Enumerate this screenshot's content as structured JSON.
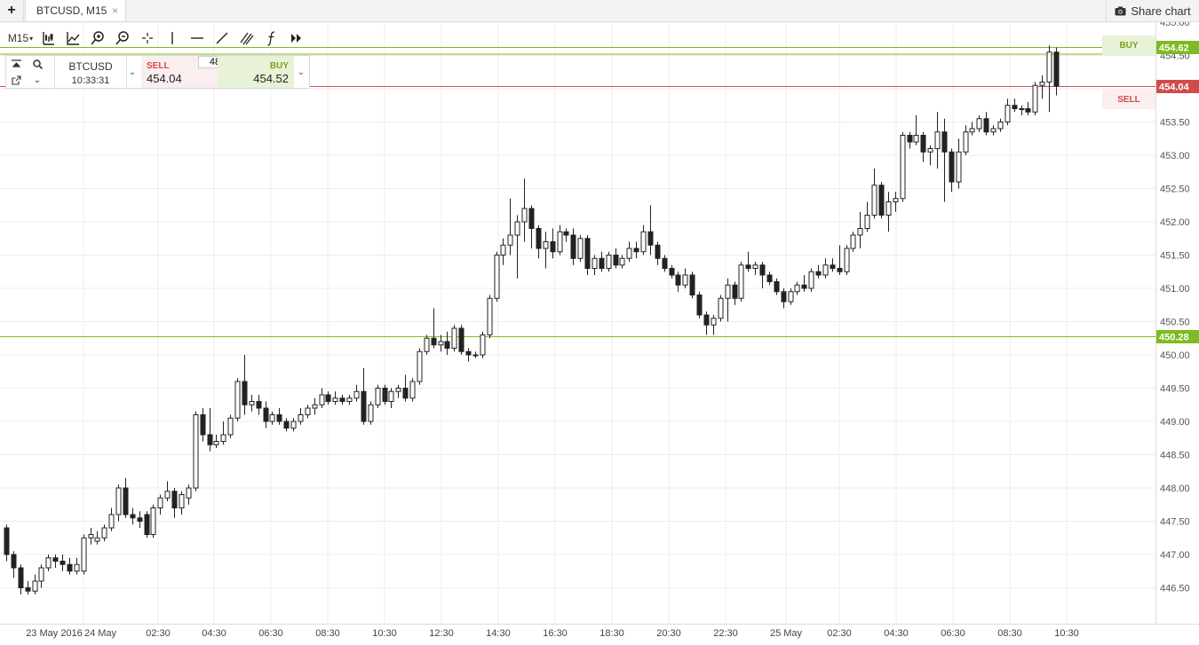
{
  "tabs": {
    "add_label": "+",
    "active_label": "BTCUSD, M15",
    "close_label": "×"
  },
  "share_label": "Share chart",
  "toolbar": {
    "timeframe": "M15"
  },
  "trade": {
    "symbol": "BTCUSD",
    "time": "10:33:31",
    "sell_label": "SELL",
    "sell_price": "454.04",
    "buy_label": "BUY",
    "buy_price": "454.52",
    "quantity": "48"
  },
  "markers": {
    "buy_label": "BUY",
    "sell_label": "SELL"
  },
  "colors": {
    "green": "#7dbb22",
    "red": "#d24b4b",
    "grid": "#ededed",
    "buy_bg": "#e7f2d6",
    "sell_bg": "#fbeeee"
  },
  "chart_data": {
    "type": "candlestick",
    "symbol": "BTCUSD",
    "timeframe": "M15",
    "y_axis": {
      "ticks": [
        "446.50",
        "447.00",
        "447.50",
        "448.00",
        "448.50",
        "449.00",
        "449.50",
        "450.00",
        "450.50",
        "451.00",
        "451.50",
        "452.00",
        "452.50",
        "453.00",
        "453.50",
        "454.00",
        "454.50",
        "455.00"
      ],
      "ylim": [
        446.0,
        455.35
      ]
    },
    "x_axis": {
      "ticks": [
        "23 May 2016",
        "24 May",
        "02:30",
        "04:30",
        "06:30",
        "08:30",
        "10:30",
        "12:30",
        "14:30",
        "16:30",
        "18:30",
        "20:30",
        "22:30",
        "25 May",
        "02:30",
        "04:30",
        "06:30",
        "08:30",
        "10:30"
      ]
    },
    "price_lines": [
      {
        "label": "454.62",
        "value": 454.62,
        "color": "green"
      },
      {
        "label": "454.04",
        "value": 454.04,
        "color": "red"
      },
      {
        "label": "450.28",
        "value": 450.28,
        "color": "green"
      }
    ],
    "extra_lines": [
      {
        "value": 454.52,
        "color": "green"
      }
    ],
    "candles": [
      {
        "o": 447.4,
        "h": 447.45,
        "l": 446.9,
        "c": 447.0
      },
      {
        "o": 447.0,
        "h": 447.05,
        "l": 446.65,
        "c": 446.8
      },
      {
        "o": 446.8,
        "h": 446.85,
        "l": 446.4,
        "c": 446.5
      },
      {
        "o": 446.5,
        "h": 446.6,
        "l": 446.4,
        "c": 446.45
      },
      {
        "o": 446.45,
        "h": 446.7,
        "l": 446.4,
        "c": 446.6
      },
      {
        "o": 446.6,
        "h": 446.85,
        "l": 446.5,
        "c": 446.8
      },
      {
        "o": 446.8,
        "h": 447.0,
        "l": 446.75,
        "c": 446.95
      },
      {
        "o": 446.95,
        "h": 447.0,
        "l": 446.8,
        "c": 446.9
      },
      {
        "o": 446.9,
        "h": 447.0,
        "l": 446.75,
        "c": 446.85
      },
      {
        "o": 446.85,
        "h": 446.95,
        "l": 446.7,
        "c": 446.75
      },
      {
        "o": 446.75,
        "h": 446.95,
        "l": 446.7,
        "c": 446.85
      },
      {
        "o": 446.75,
        "h": 447.3,
        "l": 446.7,
        "c": 447.25
      },
      {
        "o": 447.25,
        "h": 447.4,
        "l": 447.15,
        "c": 447.3
      },
      {
        "o": 447.2,
        "h": 447.35,
        "l": 447.15,
        "c": 447.25
      },
      {
        "o": 447.25,
        "h": 447.45,
        "l": 447.2,
        "c": 447.4
      },
      {
        "o": 447.4,
        "h": 447.7,
        "l": 447.35,
        "c": 447.6
      },
      {
        "o": 447.6,
        "h": 448.05,
        "l": 447.5,
        "c": 448.0
      },
      {
        "o": 448.0,
        "h": 448.15,
        "l": 447.55,
        "c": 447.6
      },
      {
        "o": 447.6,
        "h": 447.7,
        "l": 447.45,
        "c": 447.55
      },
      {
        "o": 447.55,
        "h": 447.65,
        "l": 447.4,
        "c": 447.5
      },
      {
        "o": 447.6,
        "h": 447.65,
        "l": 447.25,
        "c": 447.3
      },
      {
        "o": 447.3,
        "h": 447.75,
        "l": 447.25,
        "c": 447.7
      },
      {
        "o": 447.7,
        "h": 447.9,
        "l": 447.6,
        "c": 447.85
      },
      {
        "o": 447.85,
        "h": 448.1,
        "l": 447.8,
        "c": 447.95
      },
      {
        "o": 447.95,
        "h": 448.0,
        "l": 447.55,
        "c": 447.7
      },
      {
        "o": 447.7,
        "h": 447.95,
        "l": 447.6,
        "c": 447.9
      },
      {
        "o": 447.85,
        "h": 448.05,
        "l": 447.75,
        "c": 448.0
      },
      {
        "o": 448.0,
        "h": 449.15,
        "l": 447.95,
        "c": 449.1
      },
      {
        "o": 449.1,
        "h": 449.2,
        "l": 448.7,
        "c": 448.8
      },
      {
        "o": 448.8,
        "h": 449.2,
        "l": 448.55,
        "c": 448.65
      },
      {
        "o": 448.65,
        "h": 448.8,
        "l": 448.6,
        "c": 448.7
      },
      {
        "o": 448.7,
        "h": 449.0,
        "l": 448.65,
        "c": 448.8
      },
      {
        "o": 448.8,
        "h": 449.1,
        "l": 448.75,
        "c": 449.05
      },
      {
        "o": 449.05,
        "h": 449.65,
        "l": 449.0,
        "c": 449.6
      },
      {
        "o": 449.6,
        "h": 450.0,
        "l": 449.1,
        "c": 449.25
      },
      {
        "o": 449.25,
        "h": 449.4,
        "l": 449.15,
        "c": 449.3
      },
      {
        "o": 449.3,
        "h": 449.4,
        "l": 449.1,
        "c": 449.2
      },
      {
        "o": 449.2,
        "h": 449.3,
        "l": 448.9,
        "c": 449.0
      },
      {
        "o": 449.0,
        "h": 449.15,
        "l": 448.95,
        "c": 449.1
      },
      {
        "o": 449.1,
        "h": 449.2,
        "l": 448.95,
        "c": 449.0
      },
      {
        "o": 449.0,
        "h": 449.05,
        "l": 448.85,
        "c": 448.9
      },
      {
        "o": 448.9,
        "h": 449.05,
        "l": 448.85,
        "c": 449.0
      },
      {
        "o": 449.0,
        "h": 449.2,
        "l": 448.95,
        "c": 449.1
      },
      {
        "o": 449.1,
        "h": 449.25,
        "l": 449.05,
        "c": 449.2
      },
      {
        "o": 449.2,
        "h": 449.35,
        "l": 449.1,
        "c": 449.25
      },
      {
        "o": 449.25,
        "h": 449.5,
        "l": 449.2,
        "c": 449.4
      },
      {
        "o": 449.4,
        "h": 449.45,
        "l": 449.25,
        "c": 449.3
      },
      {
        "o": 449.3,
        "h": 449.45,
        "l": 449.25,
        "c": 449.35
      },
      {
        "o": 449.35,
        "h": 449.4,
        "l": 449.25,
        "c": 449.3
      },
      {
        "o": 449.3,
        "h": 449.4,
        "l": 449.25,
        "c": 449.35
      },
      {
        "o": 449.35,
        "h": 449.55,
        "l": 449.3,
        "c": 449.45
      },
      {
        "o": 449.45,
        "h": 449.8,
        "l": 448.95,
        "c": 449.0
      },
      {
        "o": 449.0,
        "h": 449.3,
        "l": 448.95,
        "c": 449.25
      },
      {
        "o": 449.25,
        "h": 449.55,
        "l": 449.2,
        "c": 449.5
      },
      {
        "o": 449.5,
        "h": 449.55,
        "l": 449.25,
        "c": 449.3
      },
      {
        "o": 449.3,
        "h": 449.5,
        "l": 449.2,
        "c": 449.45
      },
      {
        "o": 449.45,
        "h": 449.55,
        "l": 449.35,
        "c": 449.5
      },
      {
        "o": 449.5,
        "h": 449.7,
        "l": 449.3,
        "c": 449.35
      },
      {
        "o": 449.35,
        "h": 449.65,
        "l": 449.3,
        "c": 449.6
      },
      {
        "o": 449.6,
        "h": 450.1,
        "l": 449.55,
        "c": 450.05
      },
      {
        "o": 450.05,
        "h": 450.3,
        "l": 450.0,
        "c": 450.25
      },
      {
        "o": 450.25,
        "h": 450.7,
        "l": 450.1,
        "c": 450.15
      },
      {
        "o": 450.15,
        "h": 450.3,
        "l": 450.05,
        "c": 450.2
      },
      {
        "o": 450.2,
        "h": 450.35,
        "l": 450.0,
        "c": 450.1
      },
      {
        "o": 450.1,
        "h": 450.45,
        "l": 450.05,
        "c": 450.4
      },
      {
        "o": 450.4,
        "h": 450.45,
        "l": 450.0,
        "c": 450.05
      },
      {
        "o": 450.05,
        "h": 450.1,
        "l": 449.9,
        "c": 450.0
      },
      {
        "o": 450.0,
        "h": 450.05,
        "l": 449.95,
        "c": 450.0
      },
      {
        "o": 450.0,
        "h": 450.35,
        "l": 449.95,
        "c": 450.3
      },
      {
        "o": 450.3,
        "h": 450.9,
        "l": 450.25,
        "c": 450.85
      },
      {
        "o": 450.85,
        "h": 451.55,
        "l": 450.8,
        "c": 451.5
      },
      {
        "o": 451.5,
        "h": 451.75,
        "l": 451.35,
        "c": 451.65
      },
      {
        "o": 451.65,
        "h": 452.35,
        "l": 451.5,
        "c": 451.8
      },
      {
        "o": 451.8,
        "h": 452.1,
        "l": 451.15,
        "c": 452.0
      },
      {
        "o": 452.0,
        "h": 452.65,
        "l": 451.7,
        "c": 452.2
      },
      {
        "o": 452.2,
        "h": 452.25,
        "l": 451.6,
        "c": 451.9
      },
      {
        "o": 451.9,
        "h": 451.95,
        "l": 451.45,
        "c": 451.6
      },
      {
        "o": 451.6,
        "h": 451.85,
        "l": 451.3,
        "c": 451.7
      },
      {
        "o": 451.7,
        "h": 451.9,
        "l": 451.45,
        "c": 451.55
      },
      {
        "o": 451.55,
        "h": 451.95,
        "l": 451.5,
        "c": 451.85
      },
      {
        "o": 451.85,
        "h": 451.9,
        "l": 451.7,
        "c": 451.8
      },
      {
        "o": 451.8,
        "h": 451.9,
        "l": 451.35,
        "c": 451.45
      },
      {
        "o": 451.45,
        "h": 451.8,
        "l": 451.4,
        "c": 451.75
      },
      {
        "o": 451.75,
        "h": 451.8,
        "l": 451.2,
        "c": 451.3
      },
      {
        "o": 451.3,
        "h": 451.5,
        "l": 451.2,
        "c": 451.45
      },
      {
        "o": 451.45,
        "h": 451.55,
        "l": 451.25,
        "c": 451.3
      },
      {
        "o": 451.3,
        "h": 451.55,
        "l": 451.25,
        "c": 451.5
      },
      {
        "o": 451.5,
        "h": 451.6,
        "l": 451.3,
        "c": 451.35
      },
      {
        "o": 451.35,
        "h": 451.5,
        "l": 451.3,
        "c": 451.45
      },
      {
        "o": 451.45,
        "h": 451.7,
        "l": 451.4,
        "c": 451.6
      },
      {
        "o": 451.6,
        "h": 451.7,
        "l": 451.45,
        "c": 451.55
      },
      {
        "o": 451.55,
        "h": 451.95,
        "l": 451.5,
        "c": 451.85
      },
      {
        "o": 451.85,
        "h": 452.25,
        "l": 451.5,
        "c": 451.65
      },
      {
        "o": 451.65,
        "h": 451.7,
        "l": 451.35,
        "c": 451.45
      },
      {
        "o": 451.45,
        "h": 451.5,
        "l": 451.25,
        "c": 451.3
      },
      {
        "o": 451.3,
        "h": 451.35,
        "l": 451.15,
        "c": 451.2
      },
      {
        "o": 451.2,
        "h": 451.25,
        "l": 450.95,
        "c": 451.05
      },
      {
        "o": 451.05,
        "h": 451.3,
        "l": 451.0,
        "c": 451.2
      },
      {
        "o": 451.2,
        "h": 451.25,
        "l": 450.85,
        "c": 450.9
      },
      {
        "o": 450.9,
        "h": 450.95,
        "l": 450.55,
        "c": 450.6
      },
      {
        "o": 450.6,
        "h": 450.65,
        "l": 450.3,
        "c": 450.45
      },
      {
        "o": 450.45,
        "h": 450.6,
        "l": 450.3,
        "c": 450.55
      },
      {
        "o": 450.55,
        "h": 450.9,
        "l": 450.5,
        "c": 450.85
      },
      {
        "o": 450.85,
        "h": 451.15,
        "l": 450.5,
        "c": 451.05
      },
      {
        "o": 451.05,
        "h": 451.1,
        "l": 450.75,
        "c": 450.85
      },
      {
        "o": 450.85,
        "h": 451.4,
        "l": 450.8,
        "c": 451.35
      },
      {
        "o": 451.35,
        "h": 451.55,
        "l": 451.25,
        "c": 451.3
      },
      {
        "o": 451.3,
        "h": 451.4,
        "l": 451.2,
        "c": 451.35
      },
      {
        "o": 451.35,
        "h": 451.4,
        "l": 451.0,
        "c": 451.2
      },
      {
        "o": 451.2,
        "h": 451.25,
        "l": 451.05,
        "c": 451.1
      },
      {
        "o": 451.1,
        "h": 451.15,
        "l": 450.9,
        "c": 450.95
      },
      {
        "o": 450.95,
        "h": 451.0,
        "l": 450.7,
        "c": 450.8
      },
      {
        "o": 450.8,
        "h": 451.0,
        "l": 450.75,
        "c": 450.95
      },
      {
        "o": 450.95,
        "h": 451.1,
        "l": 450.9,
        "c": 451.05
      },
      {
        "o": 451.05,
        "h": 451.2,
        "l": 450.95,
        "c": 451.0
      },
      {
        "o": 451.0,
        "h": 451.3,
        "l": 450.95,
        "c": 451.25
      },
      {
        "o": 451.25,
        "h": 451.35,
        "l": 451.15,
        "c": 451.2
      },
      {
        "o": 451.2,
        "h": 451.45,
        "l": 451.15,
        "c": 451.35
      },
      {
        "o": 451.35,
        "h": 451.45,
        "l": 451.25,
        "c": 451.3
      },
      {
        "o": 451.3,
        "h": 451.65,
        "l": 451.2,
        "c": 451.25
      },
      {
        "o": 451.25,
        "h": 451.65,
        "l": 451.2,
        "c": 451.6
      },
      {
        "o": 451.6,
        "h": 451.85,
        "l": 451.55,
        "c": 451.8
      },
      {
        "o": 451.8,
        "h": 452.15,
        "l": 451.6,
        "c": 451.9
      },
      {
        "o": 451.9,
        "h": 452.3,
        "l": 451.85,
        "c": 452.1
      },
      {
        "o": 452.1,
        "h": 452.8,
        "l": 452.05,
        "c": 452.55
      },
      {
        "o": 452.55,
        "h": 452.6,
        "l": 452.05,
        "c": 452.1
      },
      {
        "o": 452.1,
        "h": 452.45,
        "l": 451.85,
        "c": 452.3
      },
      {
        "o": 452.3,
        "h": 452.45,
        "l": 452.15,
        "c": 452.35
      },
      {
        "o": 452.35,
        "h": 453.35,
        "l": 452.3,
        "c": 453.3
      },
      {
        "o": 453.3,
        "h": 453.35,
        "l": 453.1,
        "c": 453.2
      },
      {
        "o": 453.2,
        "h": 453.6,
        "l": 453.15,
        "c": 453.3
      },
      {
        "o": 453.3,
        "h": 453.35,
        "l": 452.9,
        "c": 453.05
      },
      {
        "o": 453.05,
        "h": 453.15,
        "l": 452.85,
        "c": 453.1
      },
      {
        "o": 453.1,
        "h": 453.65,
        "l": 452.8,
        "c": 453.35
      },
      {
        "o": 453.35,
        "h": 453.55,
        "l": 452.3,
        "c": 453.05
      },
      {
        "o": 453.05,
        "h": 453.1,
        "l": 452.45,
        "c": 452.6
      },
      {
        "o": 452.6,
        "h": 453.25,
        "l": 452.5,
        "c": 453.05
      },
      {
        "o": 453.05,
        "h": 453.45,
        "l": 453.0,
        "c": 453.35
      },
      {
        "o": 453.35,
        "h": 453.5,
        "l": 453.3,
        "c": 453.4
      },
      {
        "o": 453.4,
        "h": 453.6,
        "l": 453.35,
        "c": 453.55
      },
      {
        "o": 453.55,
        "h": 453.65,
        "l": 453.3,
        "c": 453.35
      },
      {
        "o": 453.35,
        "h": 453.45,
        "l": 453.3,
        "c": 453.4
      },
      {
        "o": 453.4,
        "h": 453.55,
        "l": 453.35,
        "c": 453.5
      },
      {
        "o": 453.5,
        "h": 453.85,
        "l": 453.45,
        "c": 453.75
      },
      {
        "o": 453.75,
        "h": 453.85,
        "l": 453.65,
        "c": 453.7
      },
      {
        "o": 453.7,
        "h": 453.75,
        "l": 453.6,
        "c": 453.7
      },
      {
        "o": 453.7,
        "h": 453.8,
        "l": 453.6,
        "c": 453.65
      },
      {
        "o": 453.65,
        "h": 454.1,
        "l": 453.6,
        "c": 454.05
      },
      {
        "o": 454.05,
        "h": 454.2,
        "l": 453.85,
        "c": 454.1
      },
      {
        "o": 454.1,
        "h": 454.65,
        "l": 453.65,
        "c": 454.55
      },
      {
        "o": 454.55,
        "h": 454.62,
        "l": 453.9,
        "c": 454.04
      }
    ]
  }
}
